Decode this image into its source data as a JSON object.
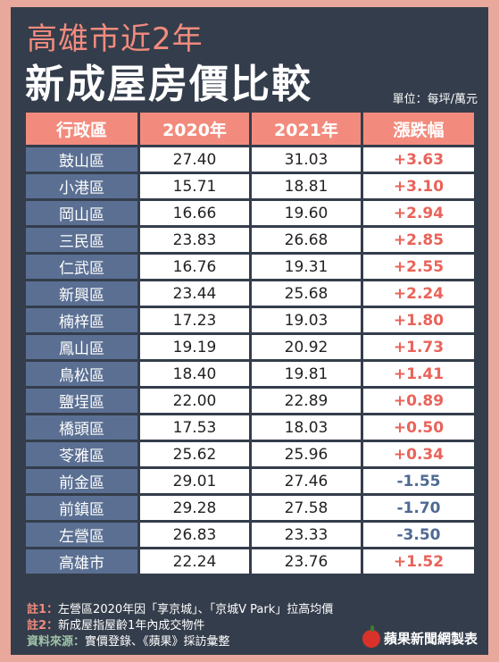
{
  "header": {
    "title_line1": "高雄市近2年",
    "title_line2": "新成屋房價比較",
    "unit": "單位：每坪/萬元"
  },
  "table": {
    "columns": [
      "行政區",
      "2020年",
      "2021年",
      "漲跌幅"
    ],
    "rows": [
      {
        "district": "鼓山區",
        "y2020": "27.40",
        "y2021": "31.03",
        "change": "+3.63"
      },
      {
        "district": "小港區",
        "y2020": "15.71",
        "y2021": "18.81",
        "change": "+3.10"
      },
      {
        "district": "岡山區",
        "y2020": "16.66",
        "y2021": "19.60",
        "change": "+2.94"
      },
      {
        "district": "三民區",
        "y2020": "23.83",
        "y2021": "26.68",
        "change": "+2.85"
      },
      {
        "district": "仁武區",
        "y2020": "16.76",
        "y2021": "19.31",
        "change": "+2.55"
      },
      {
        "district": "新興區",
        "y2020": "23.44",
        "y2021": "25.68",
        "change": "+2.24"
      },
      {
        "district": "楠梓區",
        "y2020": "17.23",
        "y2021": "19.03",
        "change": "+1.80"
      },
      {
        "district": "鳳山區",
        "y2020": "19.19",
        "y2021": "20.92",
        "change": "+1.73"
      },
      {
        "district": "鳥松區",
        "y2020": "18.40",
        "y2021": "19.81",
        "change": "+1.41"
      },
      {
        "district": "鹽埕區",
        "y2020": "22.00",
        "y2021": "22.89",
        "change": "+0.89"
      },
      {
        "district": "橋頭區",
        "y2020": "17.53",
        "y2021": "18.03",
        "change": "+0.50"
      },
      {
        "district": "苓雅區",
        "y2020": "25.62",
        "y2021": "25.96",
        "change": "+0.34"
      },
      {
        "district": "前金區",
        "y2020": "29.01",
        "y2021": "27.46",
        "change": "-1.55"
      },
      {
        "district": "前鎮區",
        "y2020": "29.28",
        "y2021": "27.58",
        "change": "-1.70"
      },
      {
        "district": "左營區",
        "y2020": "26.83",
        "y2021": "23.33",
        "change": "-3.50"
      },
      {
        "district": "高雄市",
        "y2020": "22.24",
        "y2021": "23.76",
        "change": "+1.52"
      }
    ]
  },
  "notes": {
    "note1_label": "註1：",
    "note1_text": "左營區2020年因「享京城」、「京城V Park」拉高均價",
    "note2_label": "註2：",
    "note2_text": "新成屋指屋齡1年內成交物件",
    "source_label": "資料來源：",
    "source_text": "實價登錄、《蘋果》採訪彙整"
  },
  "brand": {
    "text": "蘋果新聞網製表"
  },
  "colors": {
    "accent": "#f28b7d",
    "panel": "#343d4b",
    "district_bg": "#5a6f92",
    "positive": "#e9635a",
    "negative": "#4f6a93"
  }
}
